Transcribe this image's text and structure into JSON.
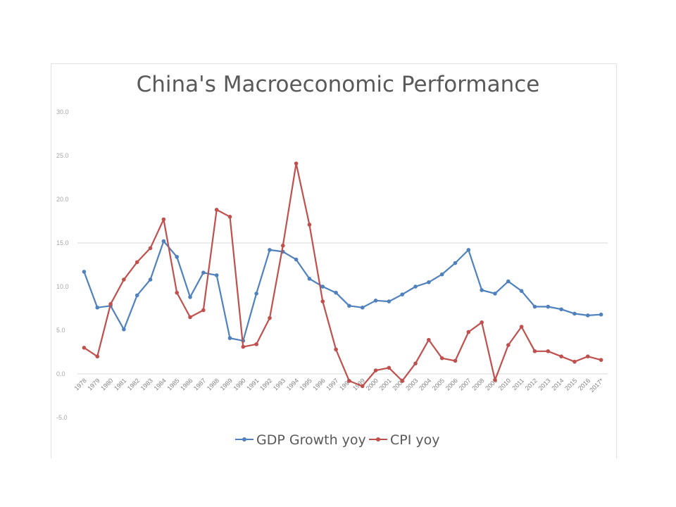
{
  "chart_data": {
    "type": "line",
    "title": "China's Macroeconomic Performance",
    "xlabel": "",
    "ylabel": "",
    "ylim": [
      -5,
      30
    ],
    "yticks": [
      -5,
      0,
      5,
      10,
      15,
      20,
      25,
      30
    ],
    "ytick_labels": [
      "-5.0",
      "0.0",
      "5.0",
      "10.0",
      "15.0",
      "20.0",
      "25.0",
      "30.0"
    ],
    "grid": "horizontal line at 15 only",
    "legend": "bottom",
    "categories": [
      "1978",
      "1979",
      "1980",
      "1981",
      "1982",
      "1983",
      "1984",
      "1985",
      "1986",
      "1987",
      "1988",
      "1989",
      "1990",
      "1991",
      "1992",
      "1993",
      "1994",
      "1995",
      "1996",
      "1997",
      "1998",
      "1999",
      "2000",
      "2001",
      "2002",
      "2003",
      "2004",
      "2005",
      "2006",
      "2007",
      "2008",
      "2009",
      "2010",
      "2011",
      "2012",
      "2013",
      "2014",
      "2015",
      "2016",
      "2017*"
    ],
    "series": [
      {
        "name": "GDP Growth yoy",
        "color": "#4f81bd",
        "values": [
          11.7,
          7.6,
          7.8,
          5.1,
          9.0,
          10.8,
          15.2,
          13.4,
          8.8,
          11.6,
          11.3,
          4.1,
          3.8,
          9.2,
          14.2,
          14.0,
          13.1,
          10.9,
          10.0,
          9.3,
          7.8,
          7.6,
          8.4,
          8.3,
          9.1,
          10.0,
          10.5,
          11.4,
          12.7,
          14.2,
          9.6,
          9.2,
          10.6,
          9.5,
          7.7,
          7.7,
          7.4,
          6.9,
          6.7,
          6.8
        ]
      },
      {
        "name": "CPI yoy",
        "color": "#c0504d",
        "values": [
          3.0,
          2.0,
          8.0,
          10.8,
          12.8,
          14.4,
          17.7,
          9.3,
          6.5,
          7.3,
          18.8,
          18.0,
          3.1,
          3.4,
          6.4,
          14.7,
          24.1,
          17.1,
          8.3,
          2.8,
          -0.8,
          -1.4,
          0.4,
          0.7,
          -0.8,
          1.2,
          3.9,
          1.8,
          1.5,
          4.8,
          5.9,
          -0.7,
          3.3,
          5.4,
          2.6,
          2.6,
          2.0,
          1.4,
          2.0,
          1.6
        ]
      }
    ]
  }
}
